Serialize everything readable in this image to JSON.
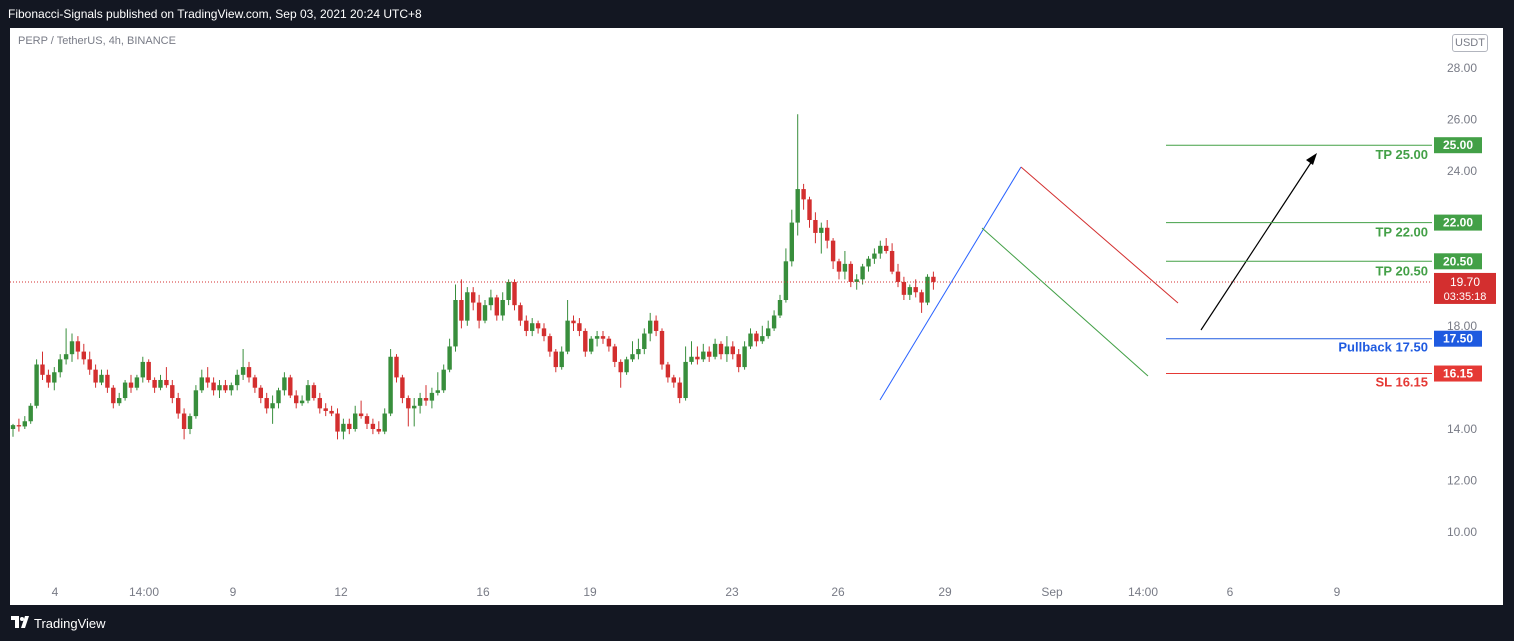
{
  "header": {
    "published_text": "Fibonacci-Signals published on TradingView.com, Sep 03, 2021 20:24 UTC+8"
  },
  "chart_header": {
    "symbol_line": "PERP / TetherUS, 4h, BINANCE",
    "currency_badge": "USDT"
  },
  "footer": {
    "brand": "TradingView"
  },
  "colors": {
    "up": "#388e3c",
    "down": "#d32f2f",
    "tp": "#43a047",
    "pullback": "#1e5ae0",
    "sl": "#e53935",
    "blue_line": "#2962ff"
  },
  "chart_data": {
    "type": "candlestick",
    "y_ticks": [
      "28.00",
      "26.00",
      "24.00",
      "18.00",
      "14.00",
      "12.00",
      "10.00"
    ],
    "x_ticks": [
      "4",
      "14:00",
      "9",
      "12",
      "16",
      "19",
      "23",
      "26",
      "29",
      "Sep",
      "14:00",
      "6",
      "9"
    ],
    "ylim": [
      8.5,
      29.5
    ],
    "current_price": {
      "value": 19.7,
      "label": "19.70",
      "countdown": "03:35:18"
    },
    "levels": [
      {
        "name": "TP 25.00",
        "value": 25.0,
        "label": "25.00",
        "role": "tp"
      },
      {
        "name": "TP 22.00",
        "value": 22.0,
        "label": "22.00",
        "role": "tp"
      },
      {
        "name": "TP 20.50",
        "value": 20.5,
        "label": "20.50",
        "role": "tp"
      },
      {
        "name": "Pullback 17.50",
        "value": 17.5,
        "label": "17.50",
        "role": "pullback"
      },
      {
        "name": "SL 16.15",
        "value": 16.15,
        "label": "16.15",
        "role": "sl"
      }
    ],
    "candles": [
      [
        14.0,
        14.2,
        13.7,
        14.15
      ],
      [
        14.15,
        14.4,
        13.9,
        14.1
      ],
      [
        14.1,
        14.5,
        14.0,
        14.3
      ],
      [
        14.3,
        15.0,
        14.2,
        14.9
      ],
      [
        14.9,
        16.7,
        14.8,
        16.5
      ],
      [
        16.5,
        17.0,
        15.9,
        16.1
      ],
      [
        16.1,
        16.3,
        15.6,
        15.8
      ],
      [
        15.8,
        16.4,
        15.5,
        16.2
      ],
      [
        16.2,
        16.9,
        16.0,
        16.7
      ],
      [
        16.7,
        17.9,
        16.5,
        16.9
      ],
      [
        16.9,
        17.7,
        16.6,
        17.4
      ],
      [
        17.4,
        17.6,
        16.7,
        17.0
      ],
      [
        17.0,
        17.3,
        16.5,
        16.7
      ],
      [
        16.7,
        17.0,
        16.1,
        16.3
      ],
      [
        16.3,
        16.5,
        15.6,
        15.8
      ],
      [
        15.8,
        16.3,
        15.7,
        16.1
      ],
      [
        16.1,
        16.3,
        15.4,
        15.6
      ],
      [
        15.6,
        15.7,
        14.8,
        15.0
      ],
      [
        15.0,
        15.4,
        14.9,
        15.2
      ],
      [
        15.2,
        15.9,
        15.1,
        15.8
      ],
      [
        15.8,
        16.1,
        15.4,
        15.6
      ],
      [
        15.6,
        16.1,
        15.5,
        16.0
      ],
      [
        16.0,
        16.8,
        15.8,
        16.6
      ],
      [
        16.6,
        16.7,
        15.8,
        15.9
      ],
      [
        15.9,
        16.0,
        15.4,
        15.6
      ],
      [
        15.6,
        16.1,
        15.5,
        15.9
      ],
      [
        15.9,
        16.4,
        15.6,
        15.7
      ],
      [
        15.7,
        15.9,
        15.0,
        15.2
      ],
      [
        15.2,
        15.4,
        14.4,
        14.6
      ],
      [
        14.6,
        14.8,
        13.6,
        14.0
      ],
      [
        14.0,
        14.6,
        13.8,
        14.5
      ],
      [
        14.5,
        15.7,
        14.4,
        15.5
      ],
      [
        15.5,
        16.3,
        15.4,
        16.0
      ],
      [
        16.0,
        16.4,
        15.6,
        15.8
      ],
      [
        15.8,
        16.0,
        15.3,
        15.5
      ],
      [
        15.5,
        15.9,
        15.2,
        15.7
      ],
      [
        15.7,
        15.9,
        15.4,
        15.5
      ],
      [
        15.5,
        15.8,
        15.3,
        15.7
      ],
      [
        15.7,
        16.3,
        15.5,
        16.1
      ],
      [
        16.1,
        17.1,
        15.9,
        16.4
      ],
      [
        16.4,
        16.6,
        15.8,
        16.0
      ],
      [
        16.0,
        16.1,
        15.4,
        15.6
      ],
      [
        15.6,
        15.7,
        15.0,
        15.2
      ],
      [
        15.2,
        15.4,
        14.6,
        14.8
      ],
      [
        14.8,
        15.3,
        14.2,
        15.0
      ],
      [
        15.0,
        15.6,
        14.8,
        15.5
      ],
      [
        15.5,
        16.2,
        15.3,
        16.0
      ],
      [
        16.0,
        16.1,
        15.2,
        15.3
      ],
      [
        15.3,
        15.5,
        14.8,
        15.0
      ],
      [
        15.0,
        15.3,
        14.9,
        15.1
      ],
      [
        15.1,
        15.9,
        15.0,
        15.7
      ],
      [
        15.7,
        15.8,
        15.1,
        15.2
      ],
      [
        15.2,
        15.4,
        14.6,
        14.8
      ],
      [
        14.8,
        15.0,
        14.5,
        14.7
      ],
      [
        14.7,
        14.9,
        14.5,
        14.6
      ],
      [
        14.6,
        14.8,
        13.6,
        13.9
      ],
      [
        13.9,
        14.4,
        13.6,
        14.2
      ],
      [
        14.2,
        14.4,
        13.8,
        14.0
      ],
      [
        14.0,
        14.9,
        13.9,
        14.6
      ],
      [
        14.6,
        15.1,
        14.4,
        14.5
      ],
      [
        14.5,
        14.6,
        14.0,
        14.2
      ],
      [
        14.2,
        14.4,
        13.8,
        14.0
      ],
      [
        14.0,
        14.3,
        13.8,
        13.9
      ],
      [
        13.9,
        14.8,
        13.8,
        14.6
      ],
      [
        14.6,
        17.1,
        14.5,
        16.8
      ],
      [
        16.8,
        16.9,
        15.8,
        16.0
      ],
      [
        16.0,
        16.1,
        15.0,
        15.2
      ],
      [
        15.2,
        15.3,
        14.1,
        14.8
      ],
      [
        14.8,
        15.2,
        14.1,
        14.9
      ],
      [
        14.9,
        15.4,
        14.6,
        15.2
      ],
      [
        15.2,
        15.7,
        14.9,
        15.1
      ],
      [
        15.1,
        15.6,
        14.8,
        15.4
      ],
      [
        15.4,
        16.2,
        15.3,
        15.5
      ],
      [
        15.5,
        16.5,
        15.4,
        16.3
      ],
      [
        16.3,
        17.5,
        16.2,
        17.2
      ],
      [
        17.2,
        19.6,
        17.0,
        19.0
      ],
      [
        19.0,
        19.8,
        17.9,
        18.2
      ],
      [
        18.2,
        19.5,
        18.0,
        19.3
      ],
      [
        19.3,
        19.5,
        18.6,
        18.9
      ],
      [
        18.9,
        19.2,
        17.9,
        18.2
      ],
      [
        18.2,
        19.0,
        18.1,
        18.8
      ],
      [
        18.8,
        19.4,
        18.6,
        19.1
      ],
      [
        19.1,
        19.2,
        18.2,
        18.4
      ],
      [
        18.4,
        19.3,
        18.2,
        19.0
      ],
      [
        19.0,
        19.8,
        18.8,
        19.7
      ],
      [
        19.7,
        19.8,
        18.6,
        18.8
      ],
      [
        18.8,
        18.9,
        18.0,
        18.2
      ],
      [
        18.2,
        18.4,
        17.6,
        17.8
      ],
      [
        17.8,
        18.3,
        17.6,
        18.1
      ],
      [
        18.1,
        18.2,
        17.7,
        17.9
      ],
      [
        17.9,
        18.1,
        17.4,
        17.6
      ],
      [
        17.6,
        17.7,
        16.8,
        17.0
      ],
      [
        17.0,
        17.1,
        16.2,
        16.4
      ],
      [
        16.4,
        17.2,
        16.3,
        17.0
      ],
      [
        17.0,
        19.0,
        16.9,
        18.2
      ],
      [
        18.2,
        18.4,
        17.8,
        18.1
      ],
      [
        18.1,
        18.3,
        17.6,
        17.8
      ],
      [
        17.8,
        17.9,
        16.8,
        17.0
      ],
      [
        17.0,
        17.6,
        16.9,
        17.5
      ],
      [
        17.5,
        17.8,
        17.2,
        17.6
      ],
      [
        17.6,
        17.8,
        17.3,
        17.5
      ],
      [
        17.5,
        17.6,
        17.0,
        17.2
      ],
      [
        17.2,
        17.3,
        16.4,
        16.6
      ],
      [
        16.6,
        16.7,
        15.6,
        16.2
      ],
      [
        16.2,
        16.8,
        16.1,
        16.7
      ],
      [
        16.7,
        17.4,
        16.6,
        16.9
      ],
      [
        16.9,
        17.5,
        16.7,
        17.1
      ],
      [
        17.1,
        17.9,
        16.9,
        17.7
      ],
      [
        17.7,
        18.5,
        17.4,
        18.2
      ],
      [
        18.2,
        18.4,
        17.6,
        17.8
      ],
      [
        17.8,
        17.9,
        16.3,
        16.5
      ],
      [
        16.5,
        16.6,
        15.8,
        16.0
      ],
      [
        16.0,
        16.1,
        15.6,
        15.8
      ],
      [
        15.8,
        16.0,
        15.0,
        15.2
      ],
      [
        15.2,
        17.2,
        15.1,
        16.6
      ],
      [
        16.6,
        17.4,
        16.5,
        16.8
      ],
      [
        16.8,
        17.2,
        16.5,
        16.7
      ],
      [
        16.7,
        17.3,
        16.6,
        17.0
      ],
      [
        17.0,
        17.2,
        16.6,
        16.8
      ],
      [
        16.8,
        17.5,
        16.7,
        17.3
      ],
      [
        17.3,
        17.4,
        16.7,
        16.9
      ],
      [
        16.9,
        17.6,
        16.6,
        17.2
      ],
      [
        17.2,
        17.4,
        16.7,
        16.9
      ],
      [
        16.9,
        17.1,
        16.2,
        16.4
      ],
      [
        16.4,
        17.4,
        16.3,
        17.2
      ],
      [
        17.2,
        17.9,
        17.1,
        17.7
      ],
      [
        17.7,
        17.8,
        17.2,
        17.4
      ],
      [
        17.4,
        18.0,
        17.3,
        17.6
      ],
      [
        17.6,
        18.2,
        17.5,
        17.9
      ],
      [
        17.9,
        18.6,
        17.8,
        18.4
      ],
      [
        18.4,
        19.2,
        18.3,
        19.0
      ],
      [
        19.0,
        21.0,
        18.9,
        20.5
      ],
      [
        20.5,
        22.5,
        20.3,
        22.0
      ],
      [
        22.0,
        26.2,
        21.5,
        23.3
      ],
      [
        23.3,
        23.5,
        22.5,
        22.9
      ],
      [
        22.9,
        23.0,
        21.8,
        22.1
      ],
      [
        22.1,
        22.4,
        21.2,
        21.6
      ],
      [
        21.6,
        22.0,
        20.8,
        21.8
      ],
      [
        21.8,
        22.1,
        21.0,
        21.3
      ],
      [
        21.3,
        21.4,
        20.2,
        20.5
      ],
      [
        20.5,
        20.6,
        19.8,
        20.1
      ],
      [
        20.1,
        20.9,
        19.8,
        20.4
      ],
      [
        20.4,
        20.5,
        19.5,
        19.7
      ],
      [
        19.7,
        20.0,
        19.4,
        19.8
      ],
      [
        19.8,
        20.4,
        19.6,
        20.3
      ],
      [
        20.3,
        20.7,
        20.1,
        20.6
      ],
      [
        20.6,
        21.0,
        20.4,
        20.8
      ],
      [
        20.8,
        21.3,
        20.6,
        21.1
      ],
      [
        21.1,
        21.4,
        20.8,
        20.9
      ],
      [
        20.9,
        21.2,
        20.0,
        20.1
      ],
      [
        20.1,
        20.4,
        19.5,
        19.7
      ],
      [
        19.7,
        19.9,
        19.0,
        19.2
      ],
      [
        19.2,
        19.6,
        19.0,
        19.5
      ],
      [
        19.5,
        19.8,
        19.1,
        19.3
      ],
      [
        19.3,
        19.4,
        18.5,
        18.9
      ],
      [
        18.9,
        20.0,
        18.8,
        19.9
      ],
      [
        19.9,
        20.1,
        19.4,
        19.7
      ]
    ]
  }
}
